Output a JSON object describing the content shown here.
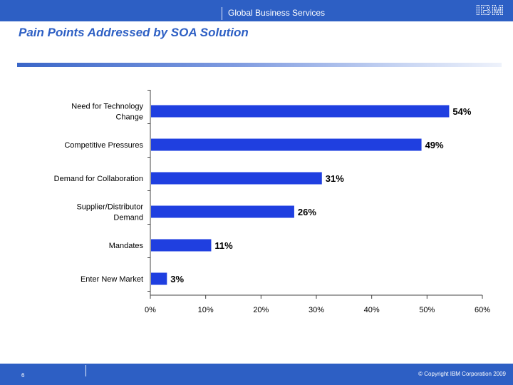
{
  "header": {
    "division": "Global Business Services",
    "logo_text": "IBM"
  },
  "slide": {
    "title": "Pain Points Addressed by SOA Solution"
  },
  "footer": {
    "page_number": "6",
    "copyright": "© Copyright IBM Corporation 2009"
  },
  "colors": {
    "bar": "#1f3fe0",
    "brand_blue": "#2d5fc4"
  },
  "chart_data": {
    "type": "bar",
    "orientation": "horizontal",
    "title": "",
    "xlabel": "",
    "ylabel": "",
    "categories": [
      "Need for Technology Change",
      "Competitive Pressures",
      "Demand for Collaboration",
      "Supplier/Distributor Demand",
      "Mandates",
      "Enter New Market"
    ],
    "category_lines": [
      [
        "Need for Technology",
        "Change"
      ],
      [
        "Competitive Pressures"
      ],
      [
        "Demand for Collaboration"
      ],
      [
        "Supplier/Distributor",
        "Demand"
      ],
      [
        "Mandates"
      ],
      [
        "Enter New Market"
      ]
    ],
    "values": [
      54,
      49,
      31,
      26,
      11,
      3
    ],
    "data_labels": [
      "54%",
      "49%",
      "31%",
      "26%",
      "11%",
      "3%"
    ],
    "xlim": [
      0,
      60
    ],
    "x_ticks": [
      0,
      10,
      20,
      30,
      40,
      50,
      60
    ],
    "x_tick_labels": [
      "0%",
      "10%",
      "20%",
      "30%",
      "40%",
      "50%",
      "60%"
    ],
    "grid": false,
    "legend": "none"
  }
}
